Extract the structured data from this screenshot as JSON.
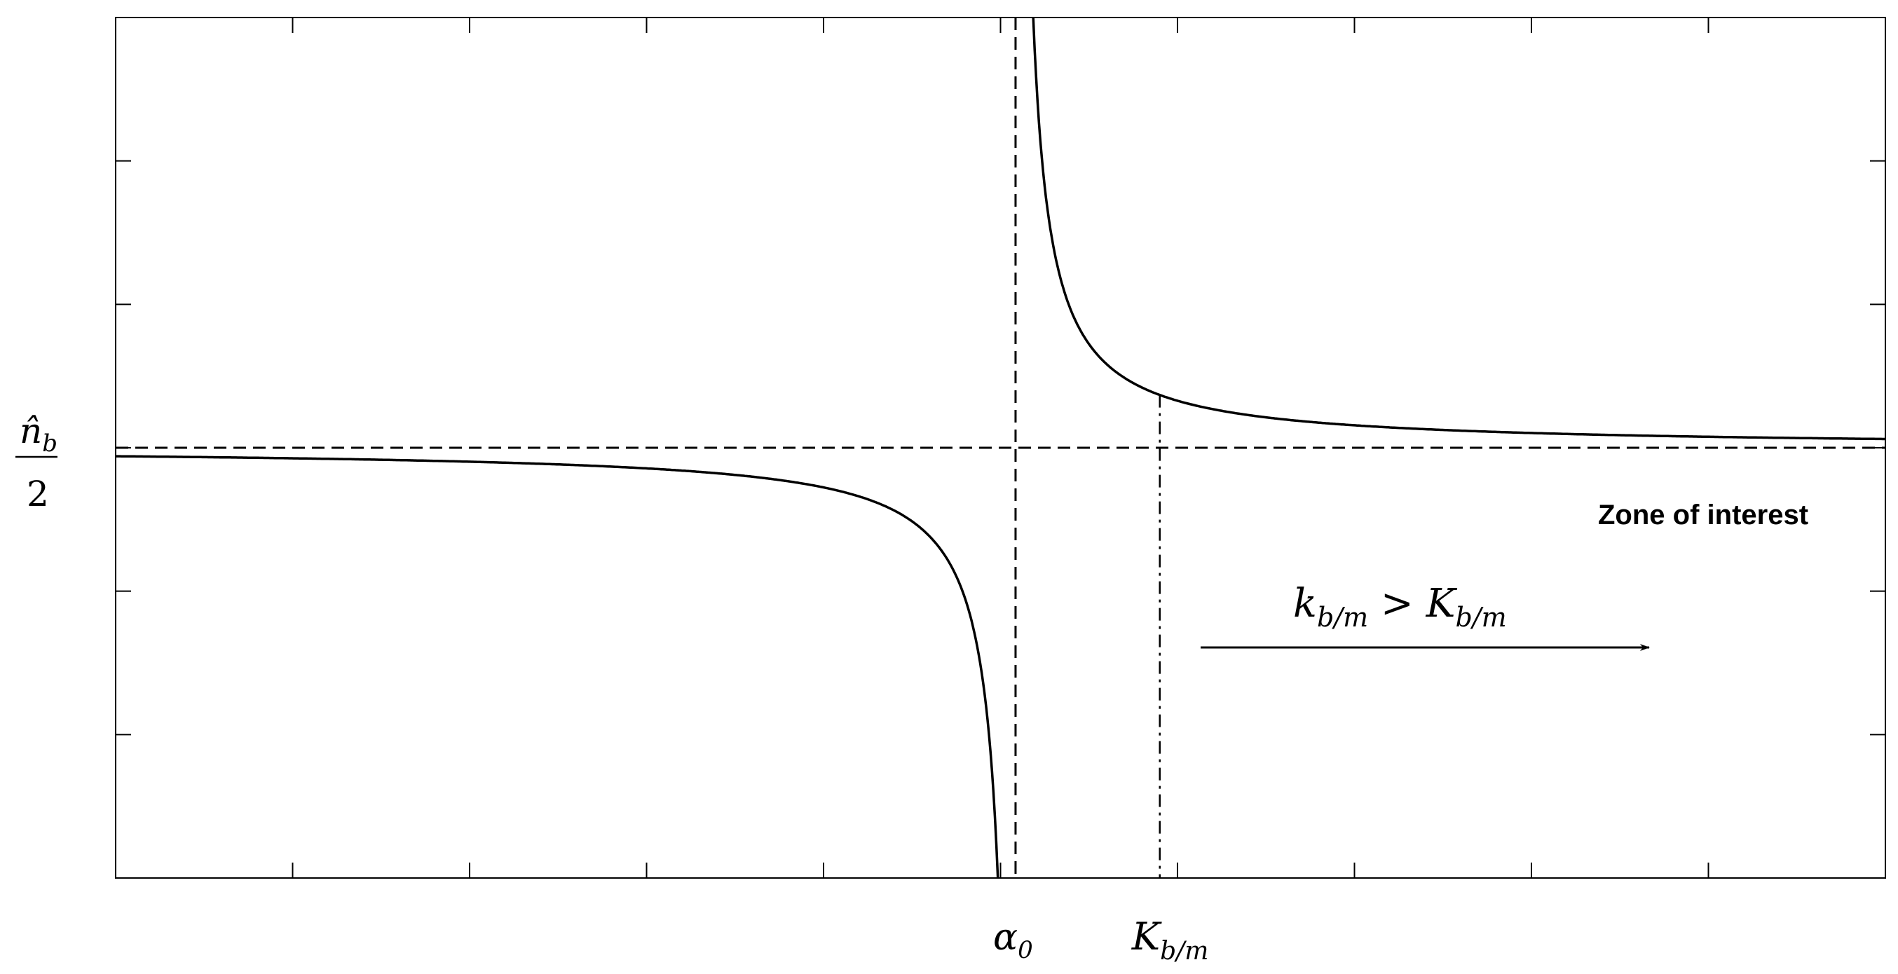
{
  "chart_data": {
    "type": "line",
    "title": "",
    "ylabel": {
      "numerator": "n̂",
      "numerator_sub": "b",
      "denominator": "2"
    },
    "xlabel": "",
    "xlim": [
      -1.0,
      1.0
    ],
    "ylim": [
      -3.0,
      3.0
    ],
    "grid": false,
    "x_tick_count": 11,
    "y_tick_count": 7,
    "asymptote_x": 0.017,
    "asymptote_y": 0.0,
    "threshold_x": 0.18,
    "curve_coefficient": 0.06,
    "series": [
      {
        "style": "solid",
        "x": [
          -1.0,
          -0.8,
          -0.6,
          -0.4,
          -0.2,
          -0.1,
          -0.05,
          -0.02,
          0.0,
          0.01,
          0.025,
          0.03,
          0.05,
          0.1,
          0.15,
          0.2,
          0.3,
          0.4,
          0.6,
          0.8,
          1.0
        ],
        "y": [
          -0.06,
          -0.07,
          -0.1,
          -0.14,
          -0.27,
          -0.51,
          -0.9,
          -1.62,
          -3.0,
          -6.0,
          6.0,
          4.6,
          1.8,
          0.72,
          0.45,
          0.33,
          0.21,
          0.16,
          0.1,
          0.08,
          0.06
        ]
      }
    ],
    "annotations": {
      "x_tick_alpha": {
        "base": "α",
        "sub": "0"
      },
      "x_tick_K": {
        "base": "K",
        "sub": "b/m"
      },
      "zone_label": "Zone of interest",
      "inequality": {
        "lhs": "k",
        "lhs_sub": "b/m",
        "op": " > ",
        "rhs": "K",
        "rhs_sub": "b/m"
      }
    }
  }
}
